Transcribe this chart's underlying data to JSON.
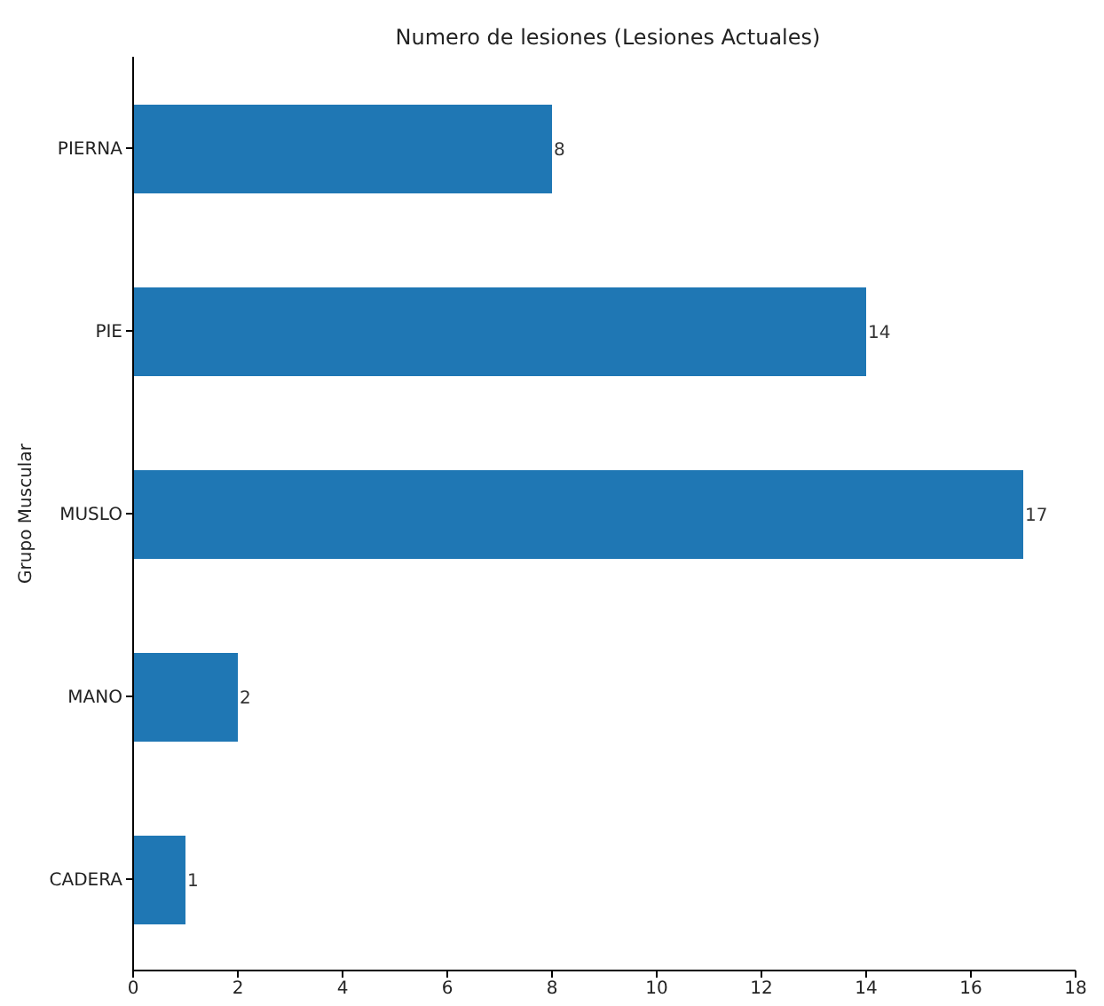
{
  "chart_data": {
    "type": "bar",
    "orientation": "horizontal",
    "title": "Numero de lesiones (Lesiones Actuales)",
    "ylabel": "Grupo Muscular",
    "categories": [
      "PIERNA",
      "PIE",
      "MUSLO",
      "MANO",
      "CADERA"
    ],
    "values": [
      8,
      14,
      17,
      2,
      1
    ],
    "color": "#1f77b4",
    "xlim": [
      0,
      18
    ],
    "xticks": [
      0,
      2,
      4,
      6,
      8,
      10,
      12,
      14,
      16,
      18
    ],
    "data_labels": true
  }
}
